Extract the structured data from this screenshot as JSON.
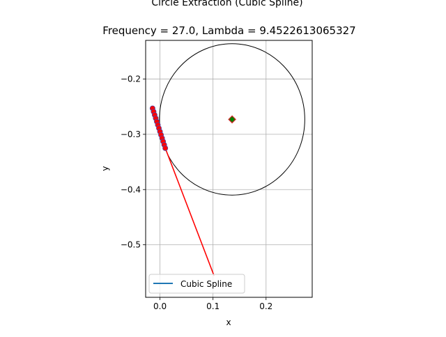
{
  "chart_data": {
    "type": "line",
    "title": "Circle Extraction (Cubic Spline)",
    "subtitle": "Frequency = 27.0, Lambda = 9.4522613065327",
    "xlabel": "x",
    "ylabel": "y",
    "xlim": [
      -0.027,
      0.287
    ],
    "ylim": [
      -0.595,
      -0.13
    ],
    "xticks": [
      0.0,
      0.1,
      0.2
    ],
    "xtick_labels": [
      "0.0",
      "0.1",
      "0.2"
    ],
    "yticks": [
      -0.2,
      -0.3,
      -0.4,
      -0.5
    ],
    "ytick_labels": [
      "−0.2",
      "−0.3",
      "−0.4",
      "−0.5"
    ],
    "grid": true,
    "legend": {
      "placement": "lower-left",
      "entries": [
        {
          "label": "Cubic Spline",
          "color": "#1f77b4"
        }
      ]
    },
    "circle": {
      "center": [
        0.136,
        -0.273
      ],
      "radius": 0.137,
      "color": "#000000"
    },
    "center_marker": {
      "x": 0.136,
      "y": -0.273,
      "fill": "#008000",
      "edge": "#d62728"
    },
    "fit_line": {
      "color": "#ff0000",
      "x": [
        -0.014,
        0.01,
        0.102
      ],
      "y": [
        -0.253,
        -0.325,
        -0.556
      ]
    },
    "points": {
      "color": "#ff0000",
      "edge": "#4a4aa8",
      "x": [
        -0.014,
        -0.012,
        -0.01,
        -0.008,
        -0.006,
        -0.004,
        -0.002,
        0.0,
        0.002,
        0.004,
        0.006,
        0.008,
        0.01
      ],
      "y": [
        -0.253,
        -0.259,
        -0.265,
        -0.271,
        -0.277,
        -0.283,
        -0.289,
        -0.295,
        -0.301,
        -0.307,
        -0.313,
        -0.319,
        -0.325
      ]
    }
  }
}
